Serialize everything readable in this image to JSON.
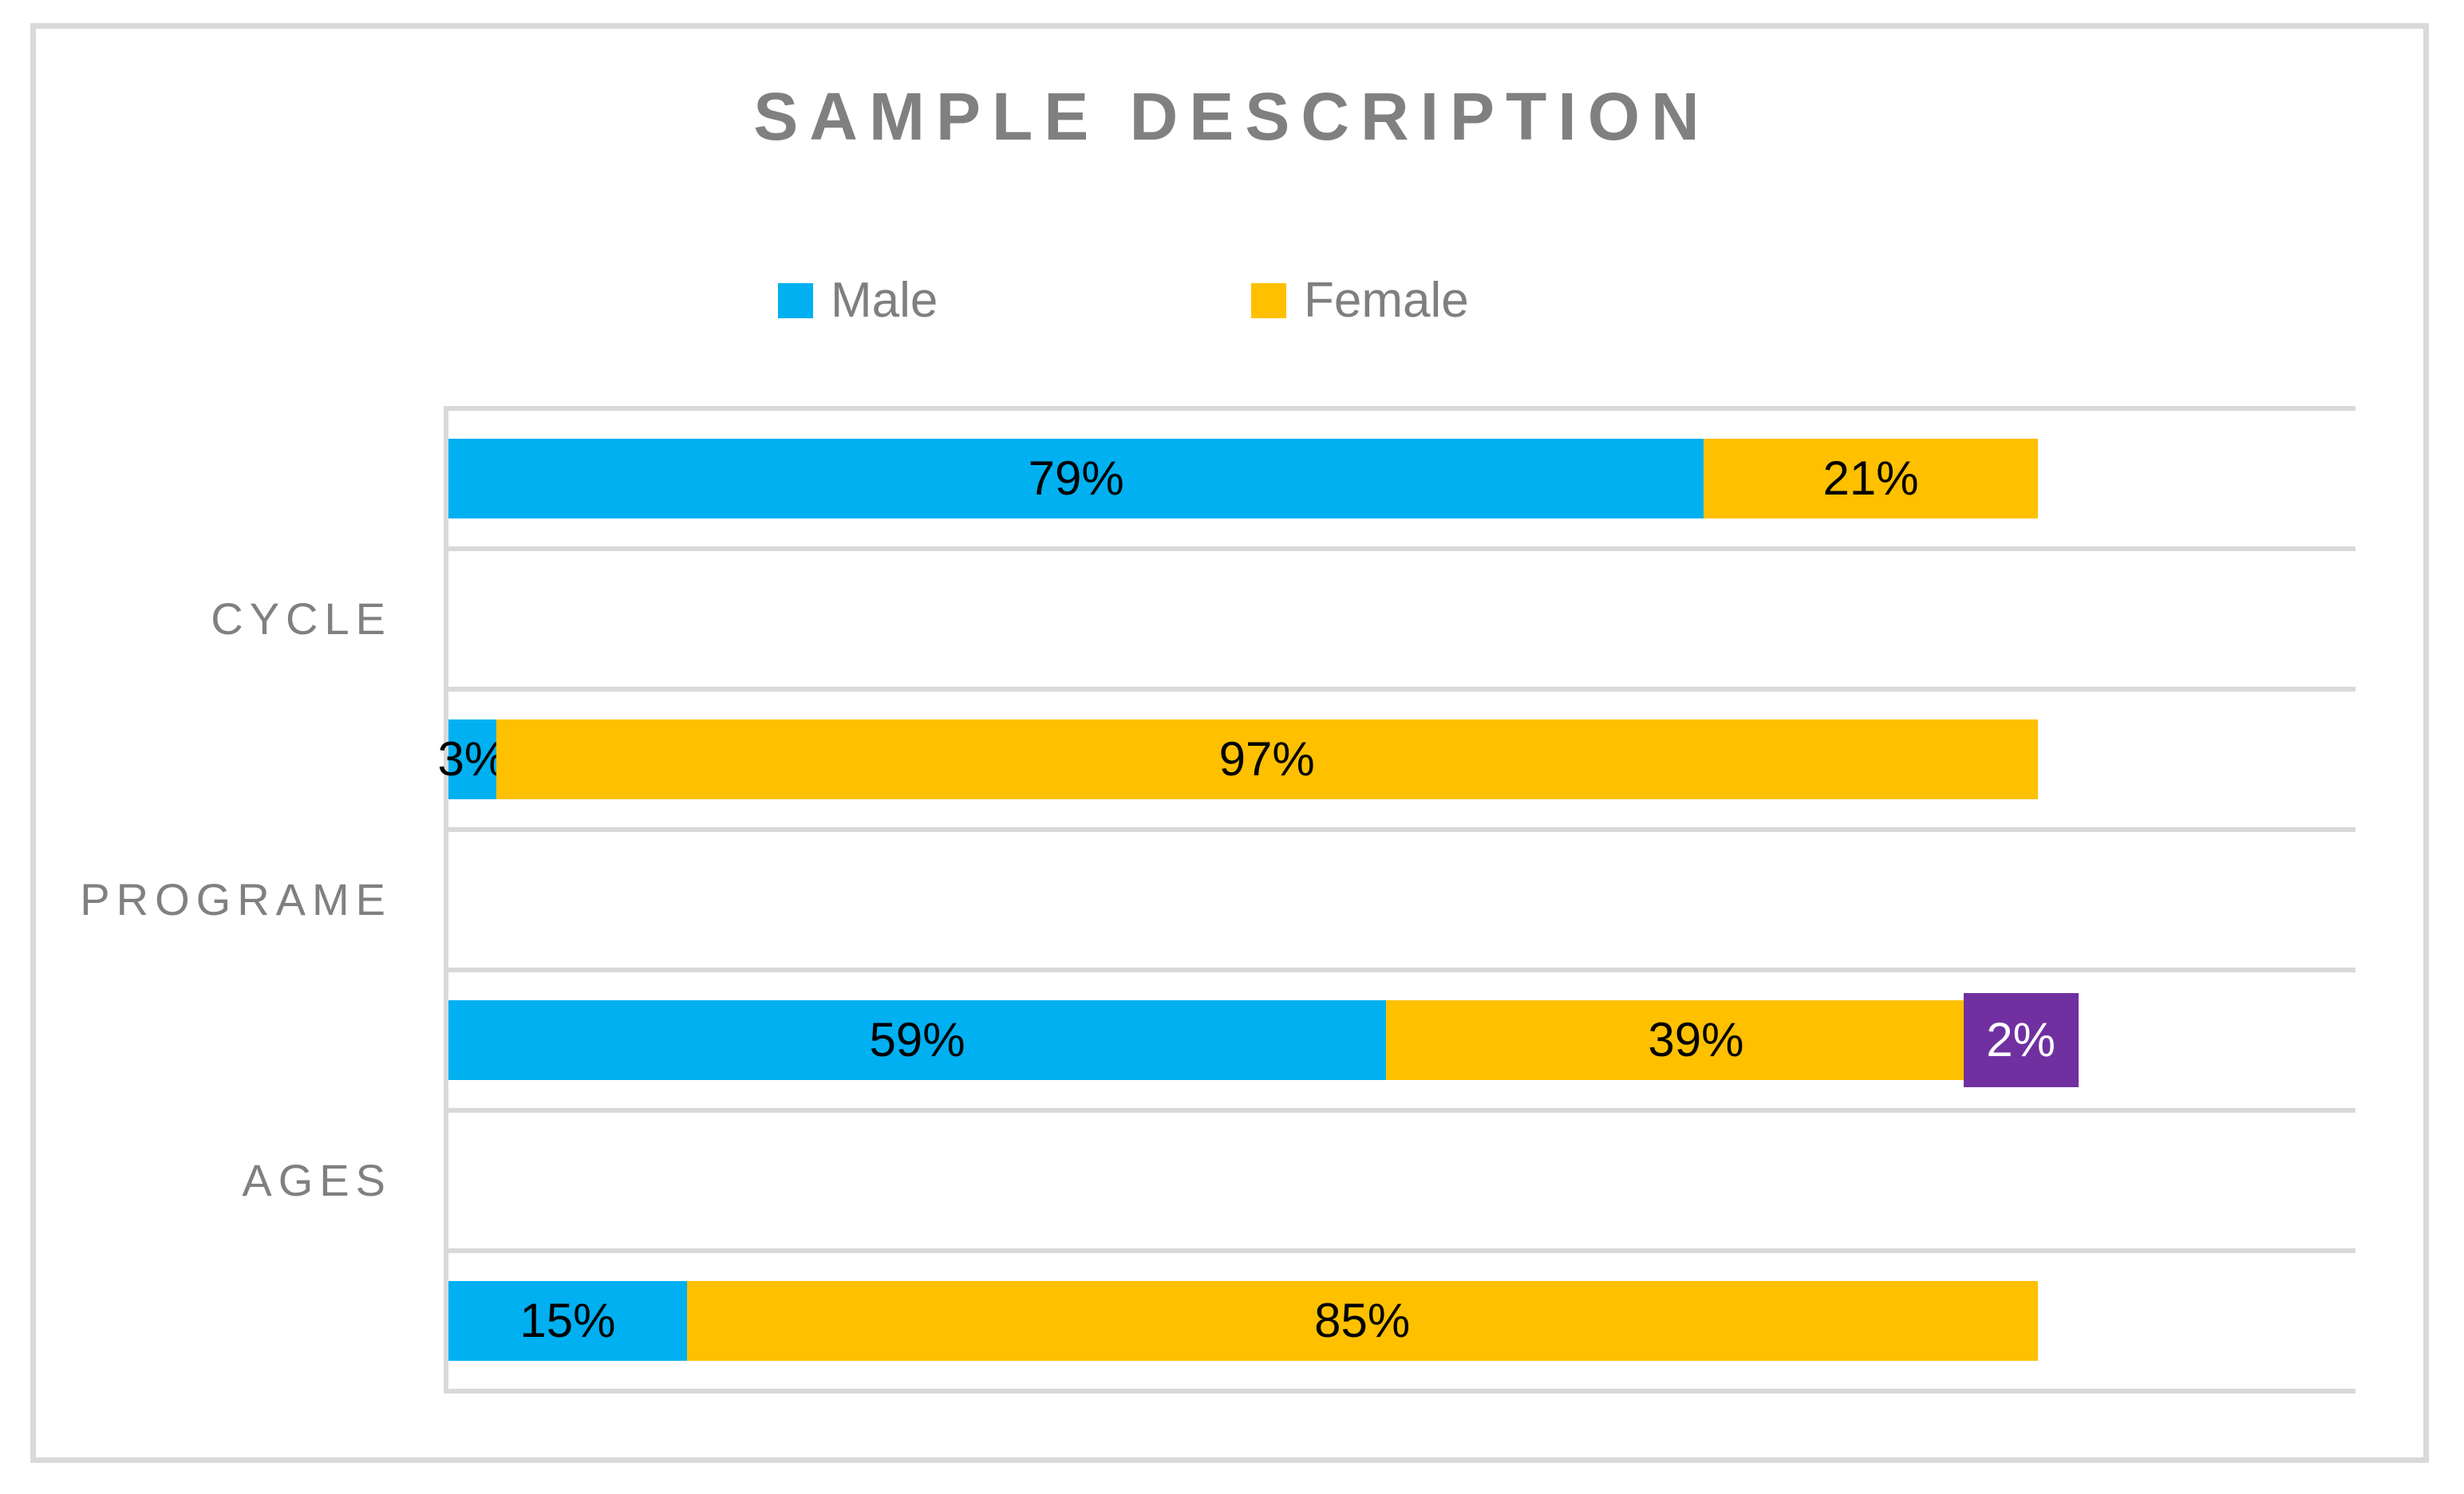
{
  "title": "SAMPLE DESCRIPTION",
  "legend": {
    "items": [
      {
        "label": "Male",
        "color": "#00b0f0"
      },
      {
        "label": "Female",
        "color": "#ffc000"
      }
    ]
  },
  "colors": {
    "male_blue": "#00b0f0",
    "female_gold": "#ffc000",
    "overlay_purple": "#7030a0",
    "text_gray": "#808080",
    "gridline_gray": "#d9d9d9"
  },
  "chart_data": {
    "type": "bar",
    "orientation": "horizontal",
    "stacked": true,
    "title": "SAMPLE DESCRIPTION",
    "legend_entries": [
      "Male",
      "Female"
    ],
    "legend_position": "top",
    "category_axis_labels": [
      "CYCLE",
      "PROGRAME",
      "AGES"
    ],
    "x_axis": {
      "min": 0,
      "max": 120,
      "unit": "percent",
      "tick_labels": "hidden",
      "gridlines": "row-boundaries"
    },
    "series_colors": {
      "Male": "#00b0f0",
      "Female": "#ffc000"
    },
    "rows": [
      {
        "segments": [
          {
            "series": "Male",
            "value": 79,
            "label": "79%"
          },
          {
            "series": "Female",
            "value": 21,
            "label": "21%"
          }
        ]
      },
      {
        "segments": [
          {
            "series": "Male",
            "value": 3,
            "label": "3%"
          },
          {
            "series": "Female",
            "value": 97,
            "label": "97%"
          }
        ]
      },
      {
        "segments": [
          {
            "series": "Male",
            "value": 59,
            "label": "59%"
          },
          {
            "series": "Female",
            "value": 39,
            "label": "39%"
          },
          {
            "value": 2,
            "label": "2%",
            "color": "#7030a0",
            "text_color": "#ffffff",
            "overlay": true
          }
        ]
      },
      {
        "segments": [
          {
            "series": "Male",
            "value": 15,
            "label": "15%"
          },
          {
            "series": "Female",
            "value": 85,
            "label": "85%"
          }
        ]
      }
    ]
  }
}
